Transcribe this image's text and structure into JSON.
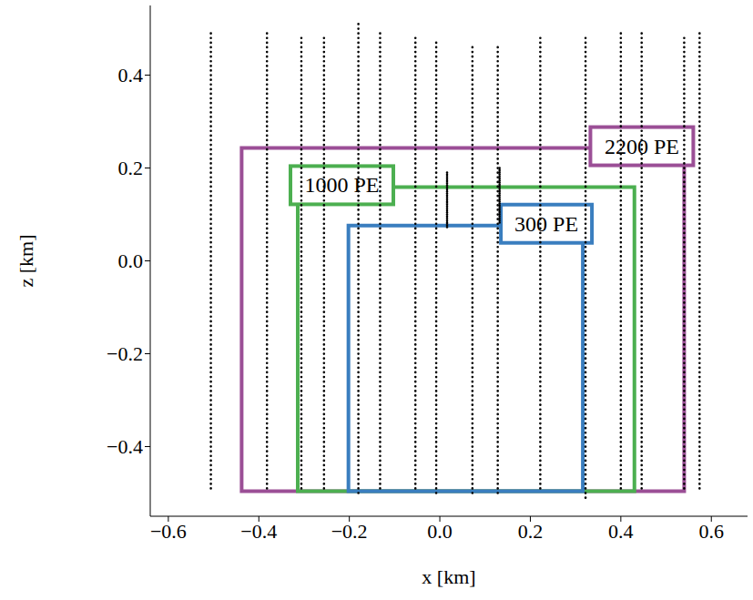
{
  "chart_data": {
    "type": "line",
    "x_label": "x [km]",
    "y_label": "z [km]",
    "xlim": [
      -0.64,
      0.68
    ],
    "ylim": [
      -0.55,
      0.55
    ],
    "xticks": [
      {
        "value": -0.6,
        "label": "−0.6"
      },
      {
        "value": -0.4,
        "label": "−0.4"
      },
      {
        "value": -0.2,
        "label": "−0.2"
      },
      {
        "value": 0,
        "label": "0.0"
      },
      0.2,
      0.4,
      0.6
    ],
    "yticks": [
      {
        "value": -0.4,
        "label": "−0.4"
      },
      {
        "value": -0.2,
        "label": "−0.2"
      },
      {
        "value": 0,
        "label": "0.0"
      },
      0.2,
      0.4
    ],
    "grid": false,
    "lines": [
      {
        "x": -0.506,
        "z": [
          0.49,
          -0.5
        ]
      },
      {
        "x": -0.382,
        "z": [
          0.49,
          -0.5
        ]
      },
      {
        "x": -0.306,
        "z": [
          0.48,
          -0.5
        ]
      },
      {
        "x": -0.256,
        "z": [
          0.48,
          -0.5
        ]
      },
      {
        "x": -0.18,
        "z": [
          0.51,
          -0.5
        ]
      },
      {
        "x": -0.132,
        "z": [
          0.49,
          -0.5
        ]
      },
      {
        "x": -0.054,
        "z": [
          0.48,
          -0.5
        ]
      },
      {
        "x": -0.008,
        "z": [
          0.47,
          -0.5
        ]
      },
      {
        "x": 0.072,
        "z": [
          0.46,
          -0.5
        ]
      },
      {
        "x": 0.128,
        "z": [
          0.46,
          -0.5
        ]
      },
      {
        "x": 0.222,
        "z": [
          0.48,
          -0.5
        ]
      },
      {
        "x": 0.322,
        "z": [
          0.48,
          -0.52
        ]
      },
      {
        "x": 0.4,
        "z": [
          0.49,
          -0.5
        ]
      },
      {
        "x": 0.446,
        "z": [
          0.49,
          -0.5
        ]
      },
      {
        "x": 0.54,
        "z": [
          0.48,
          -0.5
        ]
      },
      {
        "x": 0.574,
        "z": [
          0.49,
          -0.5
        ]
      }
    ],
    "line_style": "dotted",
    "color": "#000000",
    "dense_lines": [
      {
        "x": 0.016,
        "z": [
          0.19,
          0.07
        ]
      },
      {
        "x": 0.132,
        "z": [
          0.2,
          0.08
        ]
      }
    ],
    "dense_line_style": "densely_dotted",
    "boxes": [
      {
        "label": "2200 PE",
        "color": "#9b4f96",
        "xlim": [
          -0.438,
          0.54
        ],
        "ylim": [
          -0.496,
          0.243
        ]
      },
      {
        "label": "1000 PE",
        "color": "#4caf50",
        "xlim": [
          -0.314,
          0.43
        ],
        "ylim": [
          -0.496,
          0.159
        ]
      },
      {
        "label": "300 PE",
        "color": "#3a7ebf",
        "xlim": [
          -0.202,
          0.316
        ],
        "ylim": [
          -0.496,
          0.076
        ]
      }
    ]
  }
}
